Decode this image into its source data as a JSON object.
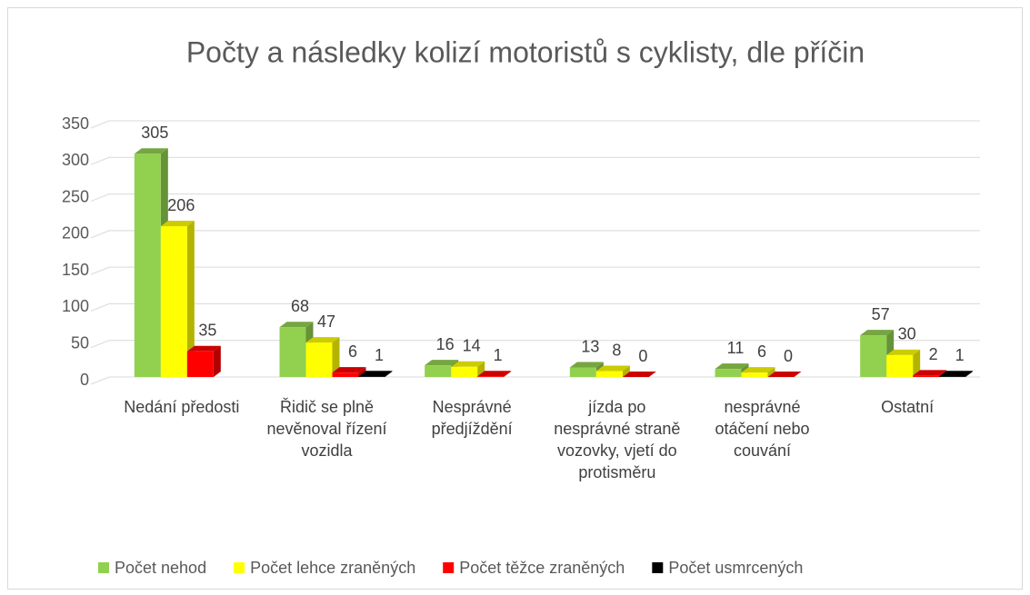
{
  "chart_data": {
    "type": "bar3d",
    "title": "Počty a následky kolizí motoristů s cyklisty,  dle příčin",
    "categories": [
      "Nedání předosti",
      "Řidič se plně nevěnoval řízení vozidla",
      "Nesprávné předjíždění",
      "jízda po nesprávné straně vozovky, vjetí do protisměru",
      "nesprávné otáčení nebo couvání",
      "Ostatní"
    ],
    "series": [
      {
        "name": "Počet nehod",
        "color": "#92d050",
        "values": [
          305,
          68,
          16,
          13,
          11,
          57
        ]
      },
      {
        "name": "Počet lehce zraněných",
        "color": "#ffff00",
        "values": [
          206,
          47,
          14,
          8,
          6,
          30
        ]
      },
      {
        "name": "Počet těžce zraněných",
        "color": "#ff0000",
        "values": [
          35,
          6,
          1,
          0,
          0,
          2
        ]
      },
      {
        "name": "Počet usmrcených",
        "color": "#000000",
        "values": [
          null,
          1,
          null,
          null,
          null,
          1
        ]
      }
    ],
    "ylim": [
      0,
      350
    ],
    "yticks": [
      0,
      50,
      100,
      150,
      200,
      250,
      300,
      350
    ],
    "grid": true,
    "legend": "bottom"
  }
}
